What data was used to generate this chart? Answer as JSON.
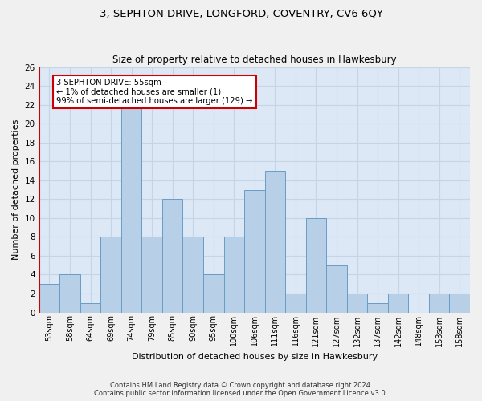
{
  "title": "3, SEPHTON DRIVE, LONGFORD, COVENTRY, CV6 6QY",
  "subtitle": "Size of property relative to detached houses in Hawkesbury",
  "xlabel": "Distribution of detached houses by size in Hawkesbury",
  "ylabel": "Number of detached properties",
  "categories": [
    "53sqm",
    "58sqm",
    "64sqm",
    "69sqm",
    "74sqm",
    "79sqm",
    "85sqm",
    "90sqm",
    "95sqm",
    "100sqm",
    "106sqm",
    "111sqm",
    "116sqm",
    "121sqm",
    "127sqm",
    "132sqm",
    "137sqm",
    "142sqm",
    "148sqm",
    "153sqm",
    "158sqm"
  ],
  "values": [
    3,
    4,
    1,
    8,
    22,
    8,
    12,
    8,
    4,
    8,
    13,
    15,
    2,
    10,
    5,
    2,
    1,
    2,
    0,
    2,
    2
  ],
  "bar_color": "#b8cfe8",
  "bar_edge_color": "#6a9cc4",
  "annotation_box_text": "3 SEPHTON DRIVE: 55sqm\n← 1% of detached houses are smaller (1)\n99% of semi-detached houses are larger (129) →",
  "annotation_box_color": "#ffffff",
  "annotation_box_edge_color": "#cc0000",
  "footer_line1": "Contains HM Land Registry data © Crown copyright and database right 2024.",
  "footer_line2": "Contains public sector information licensed under the Open Government Licence v3.0.",
  "ylim": [
    0,
    26
  ],
  "yticks": [
    0,
    2,
    4,
    6,
    8,
    10,
    12,
    14,
    16,
    18,
    20,
    22,
    24,
    26
  ],
  "grid_color": "#c5d5e5",
  "bg_color": "#dce8f5",
  "fig_color": "#f0f0f0",
  "highlight_line_color": "#cc0000"
}
